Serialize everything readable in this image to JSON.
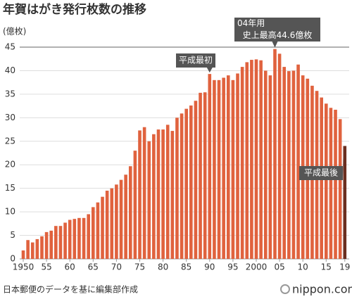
{
  "chart_data": {
    "type": "bar",
    "title": "年賀はがき発行枚数の推移",
    "y_unit": "(億枚)",
    "categories": [
      "1950",
      null,
      null,
      null,
      null,
      "55",
      null,
      null,
      null,
      null,
      "60",
      null,
      null,
      null,
      null,
      "65",
      null,
      null,
      null,
      null,
      "70",
      null,
      null,
      null,
      null,
      "75",
      null,
      null,
      null,
      null,
      "80",
      null,
      null,
      null,
      null,
      "85",
      null,
      null,
      null,
      null,
      "90",
      null,
      null,
      null,
      null,
      "95",
      null,
      null,
      null,
      null,
      "2000",
      null,
      null,
      null,
      null,
      "05",
      null,
      null,
      null,
      null,
      "10",
      null,
      null,
      null,
      null,
      "15",
      null,
      null,
      null,
      "19"
    ],
    "values": [
      1.8,
      4.0,
      3.5,
      4.2,
      4.8,
      5.7,
      6.0,
      7.0,
      7.0,
      7.7,
      8.3,
      8.5,
      8.7,
      8.7,
      9.5,
      11.0,
      12.0,
      13.2,
      14.5,
      15.0,
      15.8,
      16.8,
      17.9,
      19.7,
      23.0,
      27.3,
      28.0,
      25.0,
      26.5,
      27.5,
      27.5,
      28.5,
      27.2,
      30.0,
      30.9,
      31.9,
      32.6,
      33.6,
      35.3,
      35.4,
      39.3,
      38.0,
      38.0,
      38.5,
      39.0,
      38.0,
      39.4,
      40.8,
      41.8,
      42.3,
      42.4,
      42.2,
      40.0,
      39.0,
      44.6,
      43.6,
      40.8,
      39.9,
      40.0,
      41.3,
      39.0,
      38.3,
      36.8,
      35.7,
      34.3,
      33.0,
      32.1,
      31.7,
      29.7,
      24.0
    ],
    "colors": [
      "#e0623e",
      "#e0623e",
      "#e0623e",
      "#e0623e",
      "#e0623e",
      "#e0623e",
      "#e0623e",
      "#e0623e",
      "#e0623e",
      "#e0623e",
      "#e0623e",
      "#e0623e",
      "#e0623e",
      "#e0623e",
      "#e0623e",
      "#e0623e",
      "#e0623e",
      "#e0623e",
      "#e0623e",
      "#e0623e",
      "#e0623e",
      "#e0623e",
      "#e0623e",
      "#e0623e",
      "#e0623e",
      "#e0623e",
      "#e0623e",
      "#e0623e",
      "#e0623e",
      "#e0623e",
      "#e0623e",
      "#e0623e",
      "#e0623e",
      "#e0623e",
      "#e0623e",
      "#e0623e",
      "#e0623e",
      "#e0623e",
      "#e0623e",
      "#e0623e",
      "#e0623e",
      "#e0623e",
      "#e0623e",
      "#e0623e",
      "#e0623e",
      "#e0623e",
      "#e0623e",
      "#e0623e",
      "#e0623e",
      "#e0623e",
      "#e0623e",
      "#e0623e",
      "#e0623e",
      "#e0623e",
      "#e0623e",
      "#e0623e",
      "#e0623e",
      "#e0623e",
      "#e0623e",
      "#e0623e",
      "#e0623e",
      "#e0623e",
      "#e0623e",
      "#e0623e",
      "#e0623e",
      "#e0623e",
      "#e0623e",
      "#e0623e",
      "#e0623e",
      "#6b2e1f"
    ],
    "ylim": [
      0,
      45
    ],
    "yticks": [
      0,
      5,
      10,
      15,
      20,
      25,
      30,
      35,
      40,
      45
    ],
    "grid": true,
    "annotations": [
      {
        "text": [
          "04年用",
          "史上最高44.6億枚"
        ]
      },
      {
        "text": [
          "平成最初"
        ]
      },
      {
        "text": [
          "平成最後"
        ]
      }
    ],
    "source": "日本郵便のデータを基に編集部作成",
    "logo": "nippon.com"
  }
}
